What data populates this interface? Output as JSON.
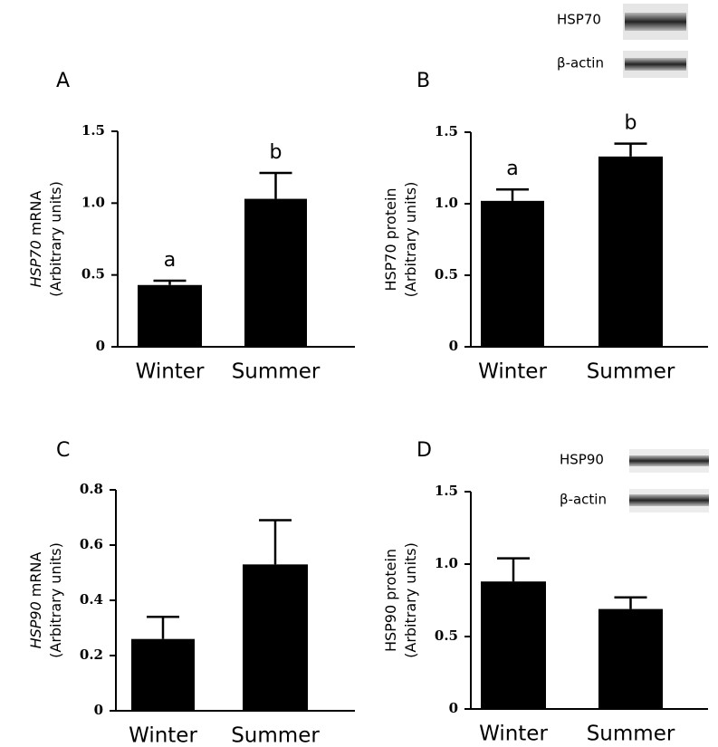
{
  "chart_data": [
    {
      "type": "bar",
      "panel": "A",
      "ylabel": {
        "gene": "HSP70",
        "measure": "mRNA",
        "unit": "(Arbitrary units)",
        "gene_italic": true
      },
      "categories": [
        "Winter",
        "Summer"
      ],
      "values": [
        0.43,
        1.03
      ],
      "errors": [
        0.03,
        0.18
      ],
      "annotations": [
        "a",
        "b"
      ],
      "color": "#000000",
      "ylim": [
        0,
        1.5
      ],
      "yticks": [
        0,
        0.5,
        {
          "value": 1,
          "label": "1.0"
        },
        1.5
      ]
    },
    {
      "type": "bar",
      "panel": "B",
      "ylabel": {
        "gene": "HSP70",
        "measure": "protein",
        "unit": "(Arbitrary units)",
        "gene_italic": false
      },
      "categories": [
        "Winter",
        "Summer"
      ],
      "values": [
        1.02,
        1.33
      ],
      "errors": [
        0.08,
        0.09
      ],
      "annotations": [
        "a",
        "b"
      ],
      "color": "#000000",
      "blot_labels": [
        "HSP70",
        "β-actin"
      ],
      "ylim": [
        0,
        1.5
      ],
      "yticks": [
        0,
        0.5,
        {
          "value": 1,
          "label": "1.0"
        },
        1.5
      ]
    },
    {
      "type": "bar",
      "panel": "C",
      "ylabel": {
        "gene": "HSP90",
        "measure": "mRNA",
        "unit": "(Arbitrary units)",
        "gene_italic": true
      },
      "categories": [
        "Winter",
        "Summer"
      ],
      "values": [
        0.26,
        0.53
      ],
      "errors": [
        0.08,
        0.16
      ],
      "color": "#000000",
      "ylim": [
        0,
        0.8
      ],
      "yticks": [
        0,
        0.2,
        0.4,
        0.6,
        0.8
      ]
    },
    {
      "type": "bar",
      "panel": "D",
      "ylabel": {
        "gene": "HSP90",
        "measure": "protein",
        "unit": "(Arbitrary units)",
        "gene_italic": false
      },
      "categories": [
        "Winter",
        "Summer"
      ],
      "values": [
        0.88,
        0.69
      ],
      "errors": [
        0.16,
        0.08
      ],
      "color": "#000000",
      "blot_labels": [
        "HSP90",
        "β-actin"
      ],
      "ylim": [
        0,
        1.5
      ],
      "yticks": [
        0,
        0.5,
        {
          "value": 1,
          "label": "1.0"
        },
        1.5
      ]
    }
  ]
}
